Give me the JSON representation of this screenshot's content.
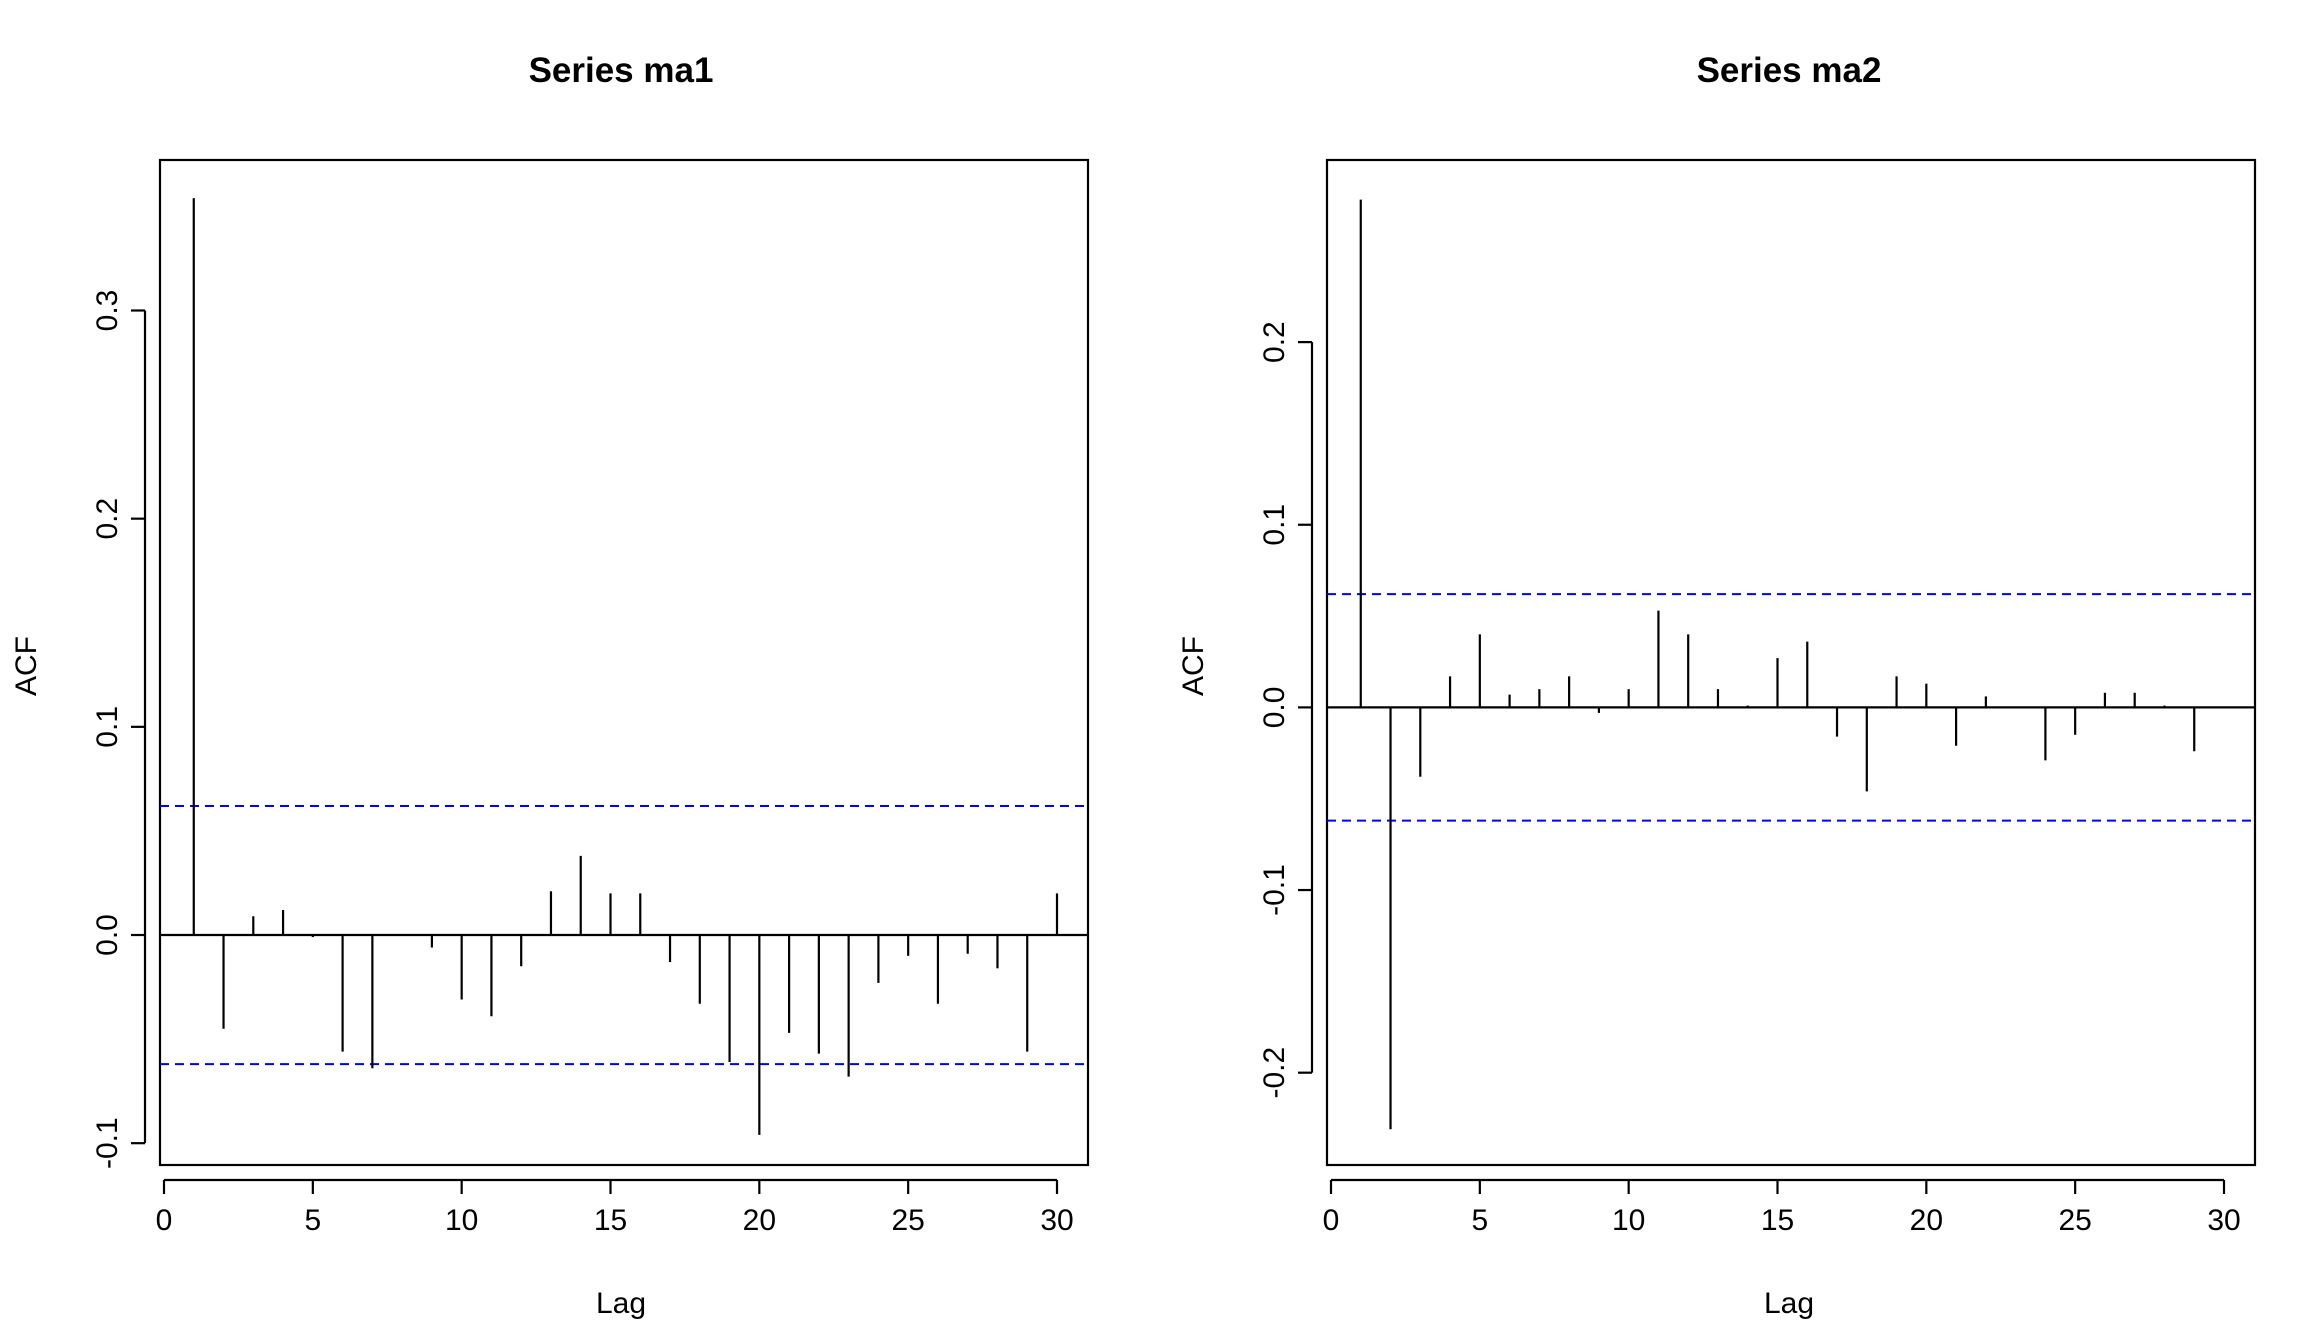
{
  "chart_data": [
    {
      "type": "bar",
      "title": "Series  ma1",
      "xlabel": "Lag",
      "ylabel": "ACF",
      "xlim": [
        0,
        30
      ],
      "ylim": [
        -0.11,
        0.355
      ],
      "x_ticks": [
        0,
        5,
        10,
        15,
        20,
        25,
        30
      ],
      "x_tick_labels": [
        "0",
        "5",
        "10",
        "15",
        "20",
        "25",
        "30"
      ],
      "y_ticks": [
        -0.1,
        0.0,
        0.1,
        0.2,
        0.3
      ],
      "y_tick_labels": [
        "-0.1",
        "0.0",
        "0.1",
        "0.2",
        "0.3"
      ],
      "lags": [
        1,
        2,
        3,
        4,
        5,
        6,
        7,
        8,
        9,
        10,
        11,
        12,
        13,
        14,
        15,
        16,
        17,
        18,
        19,
        20,
        21,
        22,
        23,
        24,
        25,
        26,
        27,
        28,
        29,
        30
      ],
      "values": [
        0.354,
        -0.045,
        0.009,
        0.012,
        -0.001,
        -0.056,
        -0.064,
        0.0,
        -0.006,
        -0.031,
        -0.039,
        -0.015,
        0.021,
        0.038,
        0.02,
        0.02,
        -0.013,
        -0.033,
        -0.061,
        -0.096,
        -0.047,
        -0.057,
        -0.068,
        -0.023,
        -0.01,
        -0.033,
        -0.009,
        -0.016,
        -0.056,
        0.02
      ],
      "ci_bound": 0.062,
      "grid": false,
      "colors": {
        "bars": "#000000",
        "ci": "#0000ff",
        "zero": "#000000"
      }
    },
    {
      "type": "bar",
      "title": "Series  ma2",
      "xlabel": "Lag",
      "ylabel": "ACF",
      "xlim": [
        0,
        30
      ],
      "ylim": [
        -0.25,
        0.28
      ],
      "x_ticks": [
        0,
        5,
        10,
        15,
        20,
        25,
        30
      ],
      "x_tick_labels": [
        "0",
        "5",
        "10",
        "15",
        "20",
        "25",
        "30"
      ],
      "y_ticks": [
        -0.2,
        -0.1,
        0.0,
        0.1,
        0.2
      ],
      "y_tick_labels": [
        "-0.2",
        "-0.1",
        "0.0",
        "0.1",
        "0.2"
      ],
      "lags": [
        1,
        2,
        3,
        4,
        5,
        6,
        7,
        8,
        9,
        10,
        11,
        12,
        13,
        14,
        15,
        16,
        17,
        18,
        19,
        20,
        21,
        22,
        23,
        24,
        25,
        26,
        27,
        28,
        29
      ],
      "values": [
        0.278,
        -0.231,
        -0.038,
        0.017,
        0.04,
        0.007,
        0.01,
        0.017,
        -0.003,
        0.01,
        0.053,
        0.04,
        0.01,
        0.001,
        0.027,
        0.036,
        -0.016,
        -0.046,
        0.017,
        0.013,
        -0.021,
        0.006,
        0.0,
        -0.029,
        -0.015,
        0.008,
        0.008,
        0.001,
        -0.024
      ],
      "ci_bound": 0.062,
      "grid": false,
      "colors": {
        "bars": "#000000",
        "ci": "#0000ff",
        "zero": "#000000"
      }
    }
  ]
}
